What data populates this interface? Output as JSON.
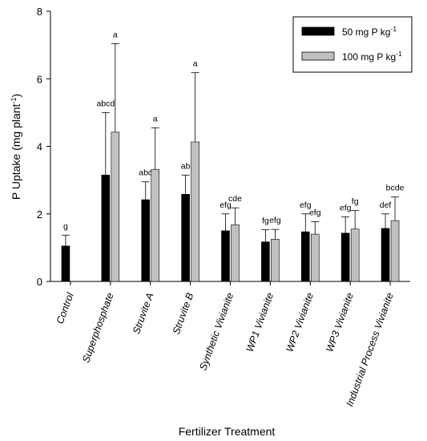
{
  "chart_data": {
    "type": "bar",
    "xlabel": "Fertilizer Treatment",
    "ylabel": "P Uptake (mg plant",
    "ylabel_sup": "-1",
    "ylabel_close": ")",
    "ylim": [
      0,
      8
    ],
    "yticks": [
      0,
      2,
      4,
      6,
      8
    ],
    "categories": [
      "Control",
      "Superphosphate",
      "Struvite A",
      "Struvite B",
      "Synthetic Vivianite",
      "WP1 Vivianite",
      "WP2 Vivianite",
      "WP3 Vivianite",
      "Industrial Process Vivianite"
    ],
    "series": [
      {
        "name": "50 mg P kg",
        "name_sup": "-1",
        "color": "#000000",
        "values": [
          1.05,
          3.15,
          2.42,
          2.58,
          1.5,
          1.17,
          1.47,
          1.43,
          1.57
        ],
        "errors": [
          0.32,
          1.85,
          0.53,
          0.57,
          0.5,
          0.36,
          0.53,
          0.48,
          0.43
        ],
        "labels": [
          "g",
          "abcd",
          "abc",
          "ab",
          "efg",
          "fg",
          "efg",
          "efg",
          "def"
        ]
      },
      {
        "name": "100 mg P kg",
        "name_sup": "-1",
        "color": "#c0c0c0",
        "values": [
          null,
          4.42,
          3.32,
          4.13,
          1.68,
          1.25,
          1.4,
          1.55,
          1.8
        ],
        "errors": [
          null,
          2.62,
          1.23,
          2.05,
          0.5,
          0.29,
          0.37,
          0.55,
          0.7
        ],
        "labels": [
          null,
          "a",
          "a",
          "a",
          "cde",
          "efg",
          "efg",
          "fg",
          "bcde"
        ]
      }
    ],
    "legend": "top-right",
    "grid": false
  }
}
